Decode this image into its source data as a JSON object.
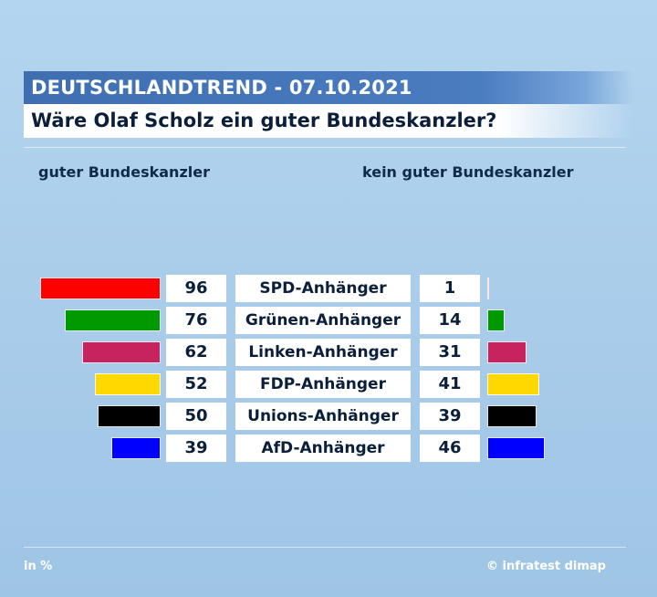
{
  "header": {
    "title": "DEUTSCHLANDTREND - 07.10.2021",
    "question": "Wäre Olaf Scholz ein guter Bundeskanzler?"
  },
  "columns": {
    "left_label": "guter Bundeskanzler",
    "right_label": "kein guter Bundeskanzler"
  },
  "chart_data": {
    "type": "bar",
    "orientation": "horizontal-diverging",
    "unit": "in %",
    "categories": [
      "SPD-Anhänger",
      "Grünen-Anhänger",
      "Linken-Anhänger",
      "FDP-Anhänger",
      "Unions-Anhänger",
      "AfD-Anhänger"
    ],
    "colors": [
      "#ff0000",
      "#009a00",
      "#c7245f",
      "#ffd800",
      "#000000",
      "#0000ff"
    ],
    "series": [
      {
        "name": "guter Bundeskanzler",
        "values": [
          96,
          76,
          62,
          52,
          50,
          39
        ]
      },
      {
        "name": "kein guter Bundeskanzler",
        "values": [
          1,
          14,
          31,
          41,
          39,
          46
        ]
      }
    ],
    "xlim": [
      0,
      100
    ],
    "grid": false,
    "legend": "none"
  },
  "footer": {
    "unit_note": "in %",
    "source": "© infratest dimap"
  }
}
